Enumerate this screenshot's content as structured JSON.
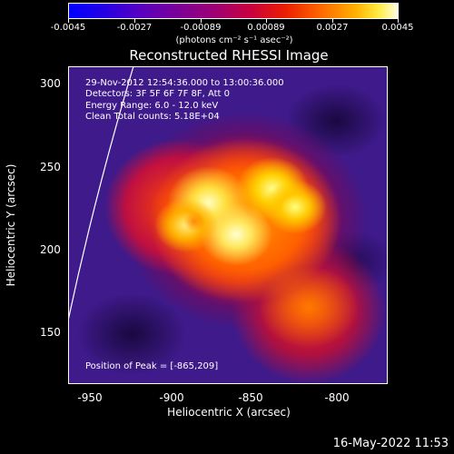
{
  "colorbar": {
    "tick_labels": [
      "-0.0045",
      "-0.0027",
      "-0.00089",
      "0.00089",
      "0.0027",
      "0.0045"
    ],
    "units": "(photons cm⁻² s⁻¹ asec⁻²)"
  },
  "title": "Reconstructed RHESSI Image",
  "info": {
    "line1": "29-Nov-2012 12:54:36.000 to 13:00:36.000",
    "line2": "Detectors: 3F 5F 6F 7F 8F, Att 0",
    "line3": "Energy Range: 6.0 - 12.0 keV",
    "line4": "Clean     Total counts: 5.18E+04",
    "peak": "Position of Peak = [-865,209]"
  },
  "axes": {
    "xlabel": "Heliocentric X (arcsec)",
    "ylabel": "Heliocentric Y (arcsec)",
    "xticks": [
      "-950",
      "-900",
      "-850",
      "-800"
    ],
    "yticks": [
      "300",
      "250",
      "200",
      "150"
    ]
  },
  "footer": "16-May-2022 11:53",
  "colors": {
    "background": "#000000",
    "image_background": "#3e1a8a",
    "hot_core": "#ffffa0",
    "mid": "#ff8000",
    "low": "#c01040"
  }
}
